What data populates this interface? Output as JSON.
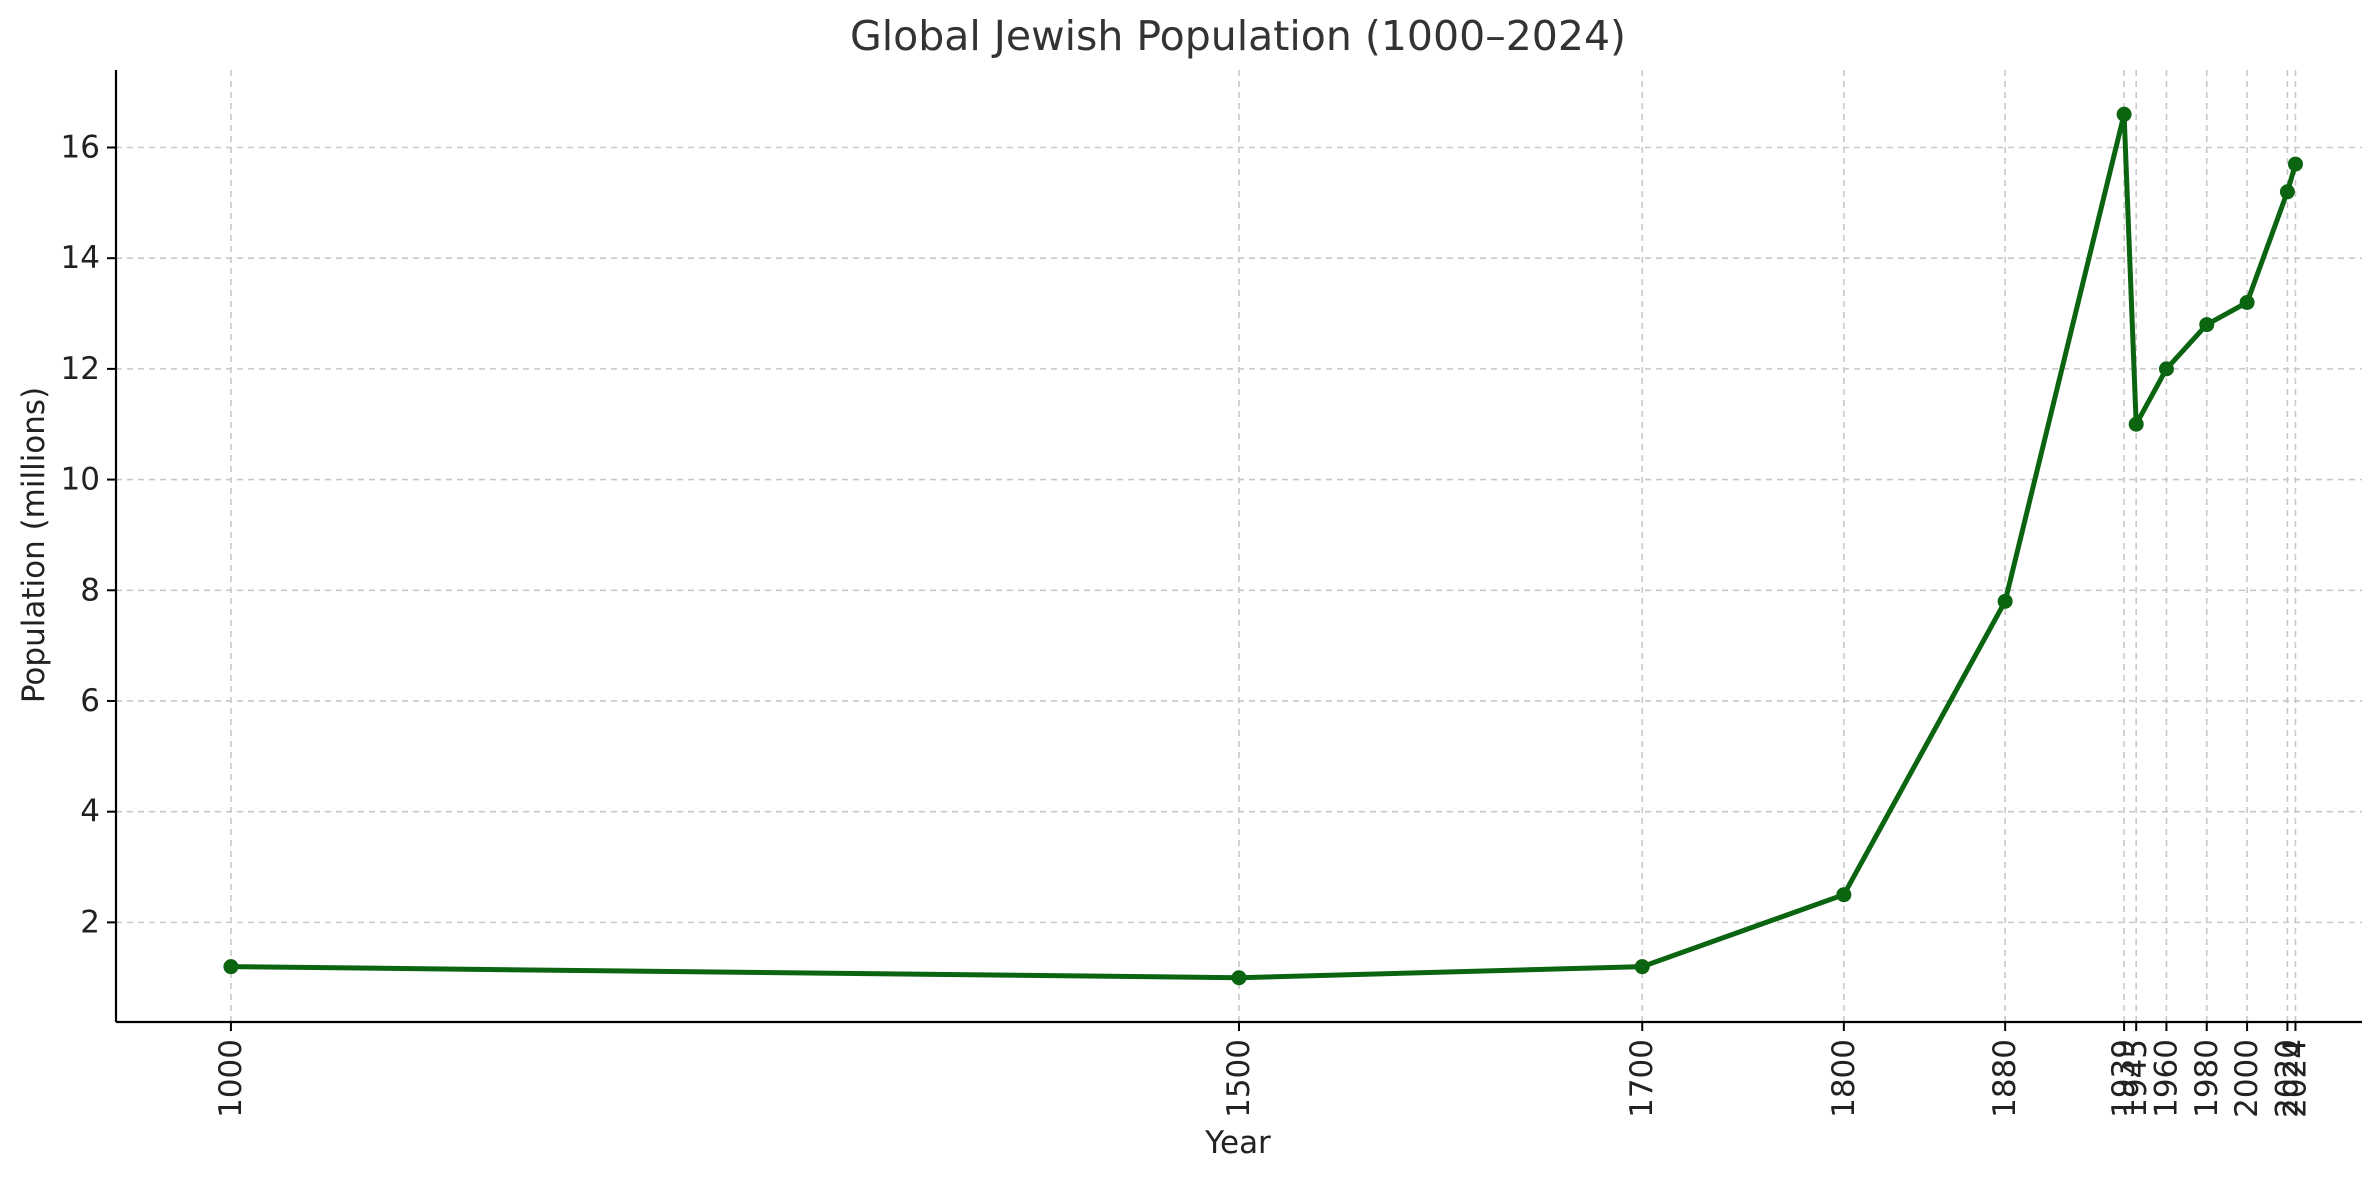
{
  "chart_data": {
    "type": "line",
    "title": "Global Jewish Population (1000–2024)",
    "xlabel": "Year",
    "ylabel": "Population (millions)",
    "categories": [
      "1000",
      "1500",
      "1700",
      "1800",
      "1880",
      "1939",
      "1945",
      "1960",
      "1980",
      "2000",
      "2020",
      "2024"
    ],
    "series": [
      {
        "values": [
          1.2,
          1.0,
          1.2,
          2.5,
          7.8,
          16.6,
          11.0,
          12.0,
          12.8,
          13.2,
          15.2,
          15.7
        ]
      }
    ],
    "ylim": [
      0.2,
      17.4
    ],
    "yticks": [
      2,
      4,
      6,
      8,
      10,
      12,
      14,
      16
    ],
    "x_scale": "linear-by-year",
    "xlim": [
      943,
      2057
    ],
    "grid": true,
    "line_color": "#0a6410",
    "legend": "none"
  }
}
